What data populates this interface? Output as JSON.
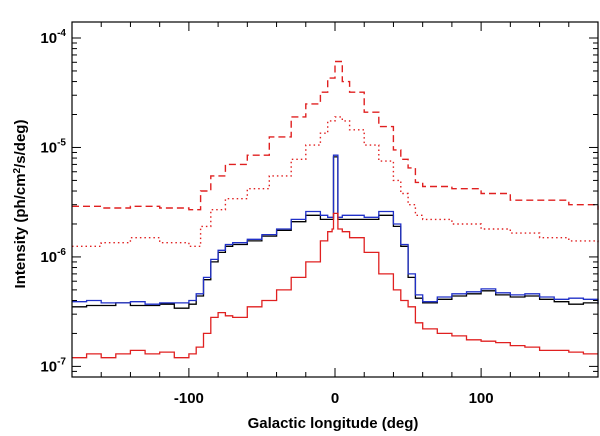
{
  "chart_data": {
    "type": "line",
    "title": "",
    "xlabel": "Galactic longitude (deg)",
    "ylabel_parts": [
      "Intensity (ph/cm",
      "2",
      "/s/deg)"
    ],
    "xlim": [
      -180,
      180
    ],
    "ylim": [
      8e-08,
      0.00014
    ],
    "yscale": "log",
    "xticks": [
      -100,
      0,
      100
    ],
    "xtick_labels": [
      "-100",
      "0",
      "100"
    ],
    "yticks": [
      {
        "value": 0.0001,
        "base": "10",
        "exp": "-4"
      },
      {
        "value": 1e-05,
        "base": "10",
        "exp": "-5"
      },
      {
        "value": 1e-06,
        "base": "10",
        "exp": "-6"
      },
      {
        "value": 1e-07,
        "base": "10",
        "exp": "-7"
      }
    ],
    "grid": false,
    "series": [
      {
        "name": "red-dashed",
        "color": "#e02020",
        "style": "dashed",
        "steps": true,
        "x": [
          -180,
          -160,
          -140,
          -120,
          -100,
          -92,
          -85,
          -75,
          -60,
          -45,
          -30,
          -20,
          -10,
          -5,
          0,
          5,
          10,
          20,
          30,
          40,
          45,
          50,
          55,
          60,
          80,
          100,
          120,
          140,
          160,
          180
        ],
        "y": [
          2.9e-06,
          2.8e-06,
          2.9e-06,
          2.8e-06,
          2.7e-06,
          4e-06,
          5.5e-06,
          7e-06,
          8.5e-06,
          1.25e-05,
          1.9e-05,
          2.5e-05,
          3.2e-05,
          4.3e-05,
          6.1e-05,
          4e-05,
          3.2e-05,
          2.1e-05,
          1.55e-05,
          9.5e-06,
          7.8e-06,
          6.5e-06,
          4.8e-06,
          4.4e-06,
          4.2e-06,
          3.8e-06,
          3.3e-06,
          3.3e-06,
          3e-06,
          2.7e-06
        ]
      },
      {
        "name": "red-dotted",
        "color": "#e02020",
        "style": "dotted",
        "steps": true,
        "x": [
          -180,
          -160,
          -140,
          -120,
          -100,
          -92,
          -85,
          -75,
          -60,
          -45,
          -30,
          -20,
          -10,
          -5,
          0,
          5,
          10,
          20,
          30,
          40,
          45,
          50,
          55,
          60,
          80,
          100,
          120,
          140,
          160,
          180
        ],
        "y": [
          1.25e-06,
          1.35e-06,
          1.5e-06,
          1.35e-06,
          1.25e-06,
          1.9e-06,
          2.7e-06,
          3.4e-06,
          4.2e-06,
          5.5e-06,
          7.8e-06,
          1.05e-05,
          1.35e-05,
          1.75e-05,
          1.9e-05,
          1.75e-05,
          1.45e-05,
          1.05e-05,
          7.5e-06,
          5e-06,
          3.8e-06,
          3e-06,
          2.4e-06,
          2.2e-06,
          2e-06,
          1.8e-06,
          1.65e-06,
          1.5e-06,
          1.4e-06,
          1.3e-06
        ]
      },
      {
        "name": "blue",
        "color": "#2030c8",
        "style": "solid",
        "steps": true,
        "x": [
          -180,
          -170,
          -160,
          -150,
          -140,
          -130,
          -120,
          -110,
          -100,
          -95,
          -90,
          -85,
          -80,
          -75,
          -70,
          -60,
          -50,
          -40,
          -30,
          -20,
          -10,
          -5,
          -2,
          -1,
          1,
          2,
          5,
          10,
          20,
          30,
          40,
          45,
          50,
          55,
          60,
          70,
          80,
          90,
          100,
          110,
          120,
          130,
          140,
          150,
          160,
          170,
          180
        ],
        "y": [
          3.9e-07,
          4e-07,
          3.8e-07,
          3.8e-07,
          3.9e-07,
          3.7e-07,
          3.8e-07,
          3.8e-07,
          4e-07,
          4.6e-07,
          6.5e-07,
          9.5e-07,
          1.15e-06,
          1.3e-06,
          1.35e-06,
          1.45e-06,
          1.6e-06,
          1.8e-06,
          2.2e-06,
          2.6e-06,
          2.4e-06,
          2.3e-06,
          2.3e-06,
          8.5e-06,
          8.5e-06,
          2.3e-06,
          2.4e-06,
          2.4e-06,
          2.3e-06,
          2.6e-06,
          2e-06,
          1.3e-06,
          7e-07,
          4.5e-07,
          3.9e-07,
          4.3e-07,
          4.6e-07,
          4.8e-07,
          5.1e-07,
          4.7e-07,
          4.5e-07,
          4.6e-07,
          4.3e-07,
          4.1e-07,
          4.2e-07,
          4.1e-07,
          3.8e-07
        ]
      },
      {
        "name": "black",
        "color": "#000000",
        "style": "solid",
        "steps": true,
        "x": [
          -180,
          -170,
          -160,
          -150,
          -140,
          -130,
          -120,
          -110,
          -100,
          -95,
          -90,
          -85,
          -80,
          -75,
          -70,
          -60,
          -50,
          -40,
          -30,
          -20,
          -10,
          -5,
          -2,
          -1,
          1,
          2,
          5,
          10,
          20,
          30,
          40,
          45,
          50,
          55,
          60,
          70,
          80,
          90,
          100,
          110,
          120,
          130,
          140,
          150,
          160,
          170,
          180
        ],
        "y": [
          3.5e-07,
          3.6e-07,
          3.6e-07,
          3.8e-07,
          3.6e-07,
          3.6e-07,
          3.7e-07,
          3.4e-07,
          3.7e-07,
          4.4e-07,
          6.2e-07,
          9e-07,
          1.1e-06,
          1.25e-06,
          1.3e-06,
          1.4e-06,
          1.55e-06,
          1.75e-06,
          2.1e-06,
          2.4e-06,
          2.2e-06,
          2.2e-06,
          2.2e-06,
          8.2e-06,
          8.2e-06,
          2.2e-06,
          2.2e-06,
          2.2e-06,
          2.2e-06,
          2.4e-06,
          1.9e-06,
          1.25e-06,
          6.5e-07,
          4.2e-07,
          3.8e-07,
          4.1e-07,
          4.4e-07,
          4.6e-07,
          4.9e-07,
          4.5e-07,
          4.3e-07,
          4.4e-07,
          4.1e-07,
          3.9e-07,
          3.7e-07,
          3.8e-07,
          3.7e-07
        ]
      },
      {
        "name": "red-solid",
        "color": "#e02020",
        "style": "solid",
        "steps": true,
        "x": [
          -180,
          -170,
          -160,
          -150,
          -140,
          -130,
          -120,
          -110,
          -100,
          -95,
          -90,
          -85,
          -80,
          -75,
          -70,
          -60,
          -50,
          -40,
          -30,
          -20,
          -10,
          -5,
          -2,
          -1,
          1,
          2,
          5,
          10,
          20,
          30,
          40,
          45,
          50,
          55,
          60,
          70,
          80,
          90,
          100,
          110,
          120,
          130,
          140,
          150,
          160,
          170,
          180
        ],
        "y": [
          1.2e-07,
          1.3e-07,
          1.2e-07,
          1.3e-07,
          1.4e-07,
          1.3e-07,
          1.35e-07,
          1.2e-07,
          1.3e-07,
          1.5e-07,
          2e-07,
          2.8e-07,
          3.1e-07,
          2.9e-07,
          2.8e-07,
          3.5e-07,
          4e-07,
          5e-07,
          6.5e-07,
          9e-07,
          1.4e-06,
          1.7e-06,
          1.8e-06,
          2.5e-06,
          2.5e-06,
          1.8e-06,
          1.7e-06,
          1.5e-06,
          1.1e-06,
          7e-07,
          5e-07,
          4e-07,
          3.5e-07,
          2.5e-07,
          2.2e-07,
          2e-07,
          1.9e-07,
          1.75e-07,
          1.7e-07,
          1.65e-07,
          1.55e-07,
          1.5e-07,
          1.4e-07,
          1.4e-07,
          1.35e-07,
          1.3e-07,
          1.3e-07
        ]
      }
    ]
  }
}
